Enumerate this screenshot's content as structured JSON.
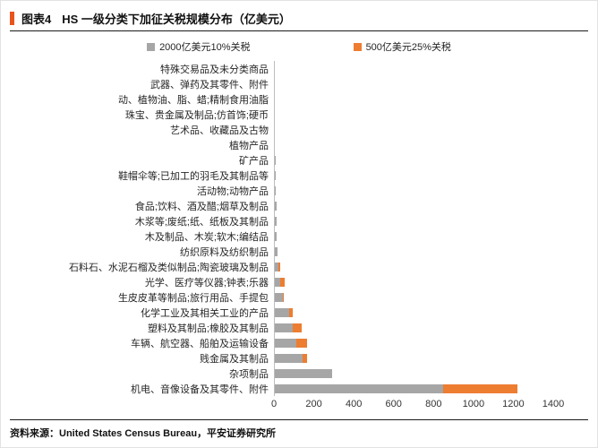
{
  "header": {
    "tag": "图表4",
    "title": "HS 一级分类下加征关税规模分布（亿美元）",
    "accent_color": "#e8541e"
  },
  "legend": [
    {
      "label": "2000亿美元10%关税",
      "color": "#a6a6a6"
    },
    {
      "label": "500亿美元25%关税",
      "color": "#ed7d31"
    }
  ],
  "footer": "资料来源：United States Census Bureau，平安证券研究所",
  "chart_data": {
    "type": "bar",
    "orientation": "horizontal",
    "stacked": true,
    "title": "HS 一级分类下加征关税规模分布（亿美元）",
    "xlabel": "",
    "ylabel": "",
    "xlim": [
      0,
      1400
    ],
    "xticks": [
      0,
      200,
      400,
      600,
      800,
      1000,
      1200,
      1400
    ],
    "grid": false,
    "legend_position": "top",
    "categories": [
      "特殊交易品及未分类商品",
      "武器、弹药及其零件、附件",
      "动、植物油、脂、蜡;精制食用油脂",
      "珠宝、贵金属及制品;仿首饰;硬币",
      "艺术品、收藏品及古物",
      "植物产品",
      "矿产品",
      "鞋帽伞等;已加工的羽毛及其制品等",
      "活动物;动物产品",
      "食品;饮料、酒及醋;烟草及制品",
      "木浆等;废纸;纸、纸板及其制品",
      "木及制品、木炭;软木;编结品",
      "纺织原料及纺织制品",
      "石料石、水泥石榴及类似制品;陶瓷玻璃及制品",
      "光学、医疗等仪器;钟表;乐器",
      "生皮皮革等制品;旅行用品、手提包",
      "化学工业及其相关工业的产品",
      "塑料及其制品;橡胶及其制品",
      "车辆、航空器、船舶及运输设备",
      "贱金属及其制品",
      "杂项制品",
      "机电、音像设备及其零件、附件"
    ],
    "series": [
      {
        "name": "2000亿美元10%关税",
        "color": "#a6a6a6",
        "values": [
          5,
          1,
          3,
          3,
          4,
          5,
          8,
          10,
          10,
          12,
          15,
          15,
          18,
          22,
          30,
          45,
          75,
          95,
          110,
          145,
          290,
          850
        ]
      },
      {
        "name": "500亿美元25%关税",
        "color": "#ed7d31",
        "values": [
          0,
          0,
          0,
          0,
          0,
          0,
          0,
          0,
          0,
          0,
          0,
          0,
          0,
          8,
          25,
          5,
          20,
          45,
          55,
          20,
          0,
          370
        ]
      }
    ]
  }
}
